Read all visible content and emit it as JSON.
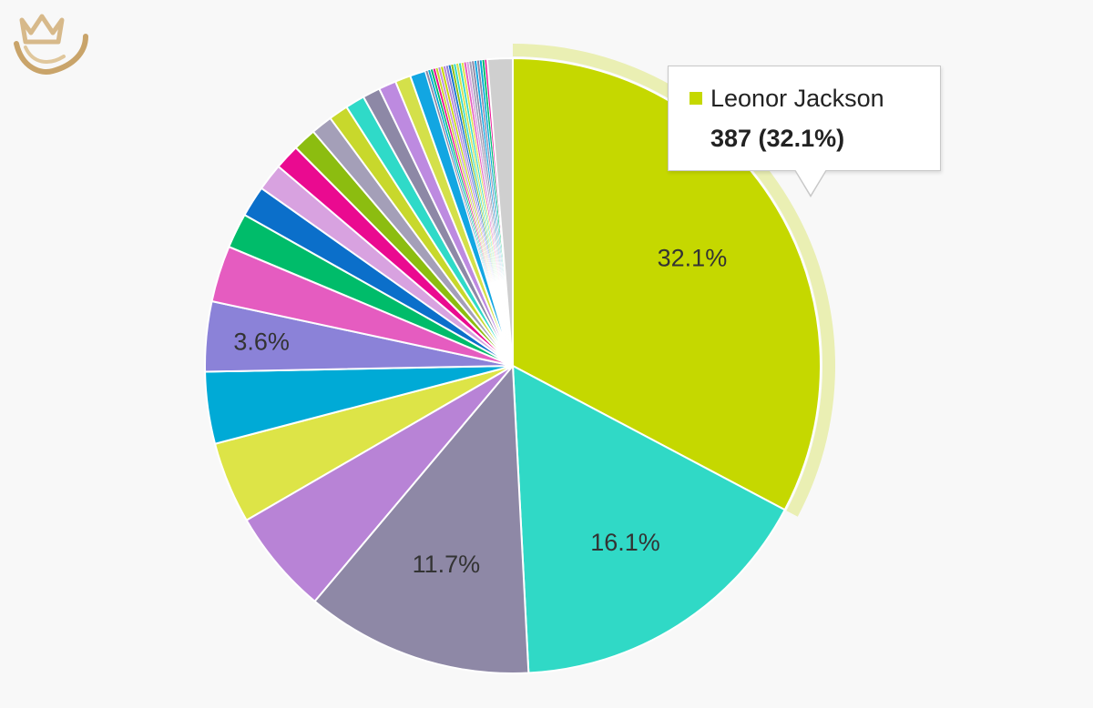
{
  "chart_data": {
    "type": "pie",
    "colors": {
      "slice_1": "#c5d800",
      "slice_2": "#30d9c6",
      "slice_3": "#8e88a6",
      "slice_4": "#b883d6",
      "slice_5": "#dde447",
      "slice_6": "#00aad6",
      "slice_7": "#8b82d8",
      "slice_8": "#e55cc0",
      "slice_9": "#00bc6a",
      "slice_10": "#0b6fca",
      "slice_11": "#d8a2e0",
      "slice_12": "#ea0a90",
      "slice_13": "#8cbd10",
      "slice_14": "#a49fb8",
      "slice_15": "#c8d82c",
      "slice_16": "#2fdac8",
      "slice_17": "#8d88a6",
      "slice_18": "#bd8ae0",
      "slice_19": "#d4e04a",
      "slice_20": "#12a6e2",
      "remaining": "#cfcfcf"
    },
    "slices": [
      {
        "value": 32.1,
        "label": "32.1%"
      },
      {
        "value": 16.1,
        "label": "16.1%"
      },
      {
        "value": 11.7,
        "label": "11.7%"
      },
      {
        "value": 5.4,
        "label": ""
      },
      {
        "value": 4.2,
        "label": ""
      },
      {
        "value": 3.7,
        "label": ""
      },
      {
        "value": 3.6,
        "label": "3.6%"
      },
      {
        "value": 2.9,
        "label": ""
      },
      {
        "value": 1.8,
        "label": ""
      },
      {
        "value": 1.6,
        "label": ""
      },
      {
        "value": 1.4,
        "label": ""
      },
      {
        "value": 1.3,
        "label": ""
      },
      {
        "value": 1.2,
        "label": ""
      },
      {
        "value": 1.1,
        "label": ""
      },
      {
        "value": 1.0,
        "label": ""
      },
      {
        "value": 1.0,
        "label": ""
      },
      {
        "value": 0.9,
        "label": ""
      },
      {
        "value": 0.9,
        "label": ""
      },
      {
        "value": 0.8,
        "label": ""
      },
      {
        "value": 0.8,
        "label": ""
      }
    ],
    "tiny_slices_count": 24,
    "tiny_slices_total": 3.2,
    "remaining_slice_value": 1.3,
    "highlighted_slice_index": 0,
    "tooltip": {
      "name": "Leonor Jackson",
      "value_text": "387 (32.1%)",
      "value": 387,
      "percent": 32.1
    }
  },
  "logo": {
    "icon": "crown-shield-logo",
    "color": "#c9a46a"
  }
}
